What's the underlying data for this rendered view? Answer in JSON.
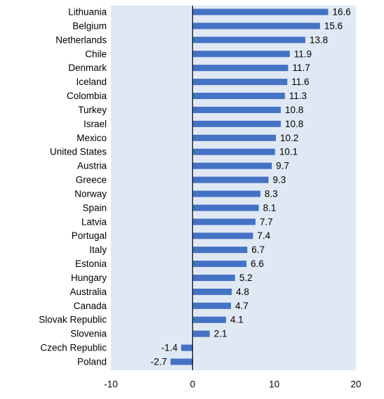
{
  "chart_data": {
    "type": "bar",
    "orientation": "horizontal",
    "categories": [
      "Lithuania",
      "Belgium",
      "Netherlands",
      "Chile",
      "Denmark",
      "Iceland",
      "Colombia",
      "Turkey",
      "Israel",
      "Mexico",
      "United States",
      "Austria",
      "Greece",
      "Norway",
      "Spain",
      "Latvia",
      "Portugal",
      "Italy",
      "Estonia",
      "Hungary",
      "Australia",
      "Canada",
      "Slovak Republic",
      "Slovenia",
      "Czech Republic",
      "Poland"
    ],
    "values": [
      16.6,
      15.6,
      13.8,
      11.9,
      11.7,
      11.6,
      11.3,
      10.8,
      10.8,
      10.2,
      10.1,
      9.7,
      9.3,
      8.3,
      8.1,
      7.7,
      7.4,
      6.7,
      6.6,
      5.2,
      4.8,
      4.7,
      4.1,
      2.1,
      -1.4,
      -2.7
    ],
    "value_labels": [
      "16.6",
      "15.6",
      "13.8",
      "11.9",
      "11.7",
      "11.6",
      "11.3",
      "10.8",
      "10.8",
      "10.2",
      "10.1",
      "9.7",
      "9.3",
      "8.3",
      "8.1",
      "7.7",
      "7.4",
      "6.7",
      "6.6",
      "5.2",
      "4.8",
      "4.7",
      "4.1",
      "2.1",
      "-1.4",
      "-2.7"
    ],
    "x_ticks": [
      "-10",
      "0",
      "10",
      "20"
    ],
    "xlim": [
      -10,
      20
    ],
    "bar_color": "#4472c4",
    "panel_color": "#dfe8f3",
    "title": "",
    "xlabel": "",
    "ylabel": ""
  }
}
